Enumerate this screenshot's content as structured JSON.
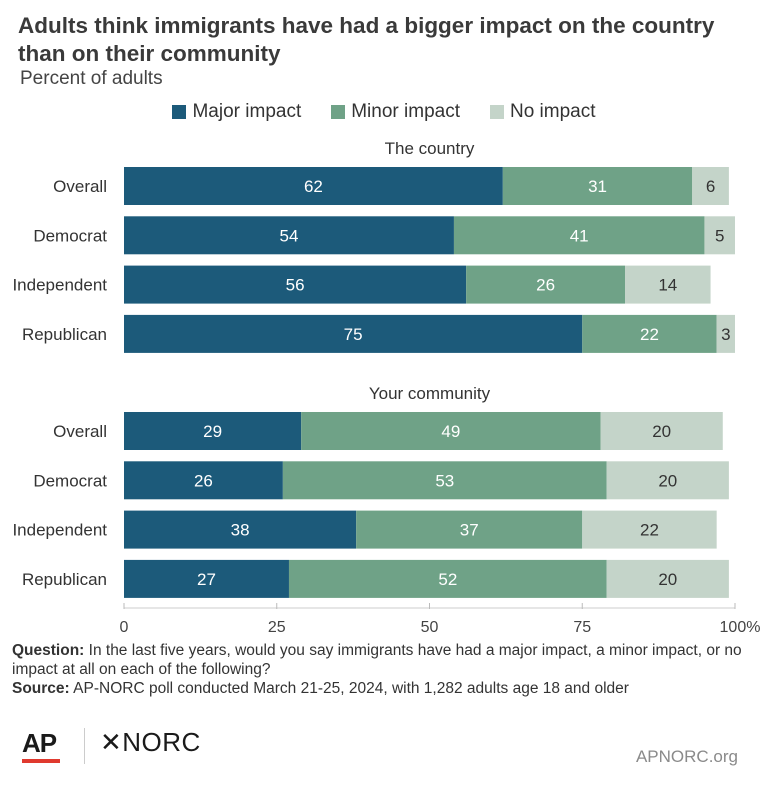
{
  "title": "Adults think immigrants have had a bigger impact on the country than on their community",
  "subtitle": "Percent of adults",
  "legend": {
    "major": "Major impact",
    "minor": "Minor impact",
    "none": "No impact"
  },
  "colors": {
    "major": "#1c5a7a",
    "minor": "#6fa287",
    "none": "#c4d4c9"
  },
  "chart_data": {
    "type": "bar",
    "orientation": "horizontal",
    "stacked": true,
    "xlim": [
      0,
      100
    ],
    "xticks": [
      "0",
      "25",
      "50",
      "75",
      "100%"
    ],
    "grid": false,
    "legend_position": "top",
    "series_names": [
      "Major impact",
      "Minor impact",
      "No impact"
    ],
    "groups": [
      {
        "label": "The country",
        "rows": [
          {
            "category": "Overall",
            "values": [
              62,
              31,
              6
            ]
          },
          {
            "category": "Democrat",
            "values": [
              54,
              41,
              5
            ]
          },
          {
            "category": "Independent",
            "values": [
              56,
              26,
              14
            ]
          },
          {
            "category": "Republican",
            "values": [
              75,
              22,
              3
            ]
          }
        ]
      },
      {
        "label": "Your community",
        "rows": [
          {
            "category": "Overall",
            "values": [
              29,
              49,
              20
            ]
          },
          {
            "category": "Democrat",
            "values": [
              26,
              53,
              20
            ]
          },
          {
            "category": "Independent",
            "values": [
              38,
              37,
              22
            ]
          },
          {
            "category": "Republican",
            "values": [
              27,
              52,
              20
            ]
          }
        ]
      }
    ]
  },
  "footnote": {
    "question_label": "Question:",
    "question_text": " In the last five years, would you say immigrants have had a major impact, a minor impact, or no impact at all on each of the following?",
    "source_label": "Source:",
    "source_text": " AP-NORC poll conducted March 21-25, 2024, with 1,282 adults age 18 and older"
  },
  "logos": {
    "ap": "AP",
    "norc": "✕NORC"
  },
  "site": "APNORC.org"
}
